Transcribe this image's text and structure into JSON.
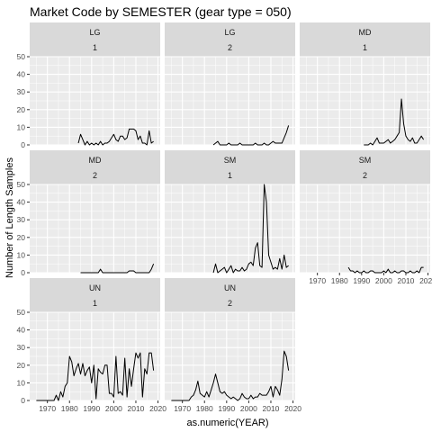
{
  "chart_data": {
    "type": "line",
    "title": "Market Code by SEMESTER (gear type = 050)",
    "xlabel": "as.numeric(YEAR)",
    "ylabel": "Number of Length Samples",
    "xlim": [
      1962,
      2021
    ],
    "ylim": [
      0,
      50
    ],
    "x_ticks": [
      1970,
      1980,
      1990,
      2000,
      2010,
      2020
    ],
    "y_ticks": [
      0,
      10,
      20,
      30,
      40,
      50
    ],
    "grid": true,
    "colors": {
      "panel": "#ebebeb",
      "strip": "#d9d9d9",
      "grid": "#ffffff",
      "line": "#000000",
      "text": "#1a1a1a",
      "tick_text": "#4d4d4d"
    },
    "panels": [
      {
        "code": "LG",
        "semester": "1",
        "x": [
          1984,
          1985,
          1986,
          1987,
          1988,
          1989,
          1990,
          1991,
          1992,
          1993,
          1994,
          1995,
          1996,
          1997,
          1998,
          1999,
          2000,
          2001,
          2002,
          2003,
          2004,
          2005,
          2006,
          2007,
          2008,
          2009,
          2010,
          2011,
          2012,
          2013,
          2014,
          2015,
          2016,
          2017,
          2018
        ],
        "y": [
          1,
          6,
          3,
          0,
          2,
          0,
          1,
          0,
          1,
          0,
          2,
          0,
          1,
          1,
          2,
          4,
          6,
          3,
          2,
          5,
          5,
          3,
          4,
          9,
          9,
          9,
          8,
          3,
          5,
          1,
          1,
          0,
          8,
          1,
          2
        ]
      },
      {
        "code": "LG",
        "semester": "2",
        "x": [
          1984,
          1985,
          1986,
          1987,
          1988,
          1989,
          1990,
          1991,
          1992,
          1993,
          1994,
          1995,
          1996,
          1997,
          1998,
          1999,
          2000,
          2001,
          2002,
          2003,
          2004,
          2005,
          2006,
          2007,
          2008,
          2009,
          2010,
          2011,
          2012,
          2013,
          2014,
          2015,
          2016,
          2017,
          2018
        ],
        "y": [
          0,
          1,
          2,
          0,
          0,
          0,
          0,
          1,
          0,
          0,
          0,
          0,
          1,
          0,
          0,
          0,
          0,
          0,
          0,
          1,
          0,
          0,
          0,
          1,
          0,
          0,
          1,
          2,
          1,
          1,
          1,
          1,
          4,
          7,
          11
        ]
      },
      {
        "code": "MD",
        "semester": "1",
        "x": [
          1991,
          1992,
          1993,
          1994,
          1995,
          1996,
          1997,
          1998,
          1999,
          2000,
          2001,
          2002,
          2003,
          2004,
          2005,
          2006,
          2007,
          2008,
          2009,
          2010,
          2011,
          2012,
          2013,
          2014,
          2015,
          2016,
          2017,
          2018
        ],
        "y": [
          0,
          0,
          0,
          1,
          0,
          2,
          4,
          1,
          1,
          1,
          2,
          3,
          1,
          2,
          3,
          5,
          7,
          26,
          12,
          5,
          3,
          2,
          4,
          1,
          1,
          3,
          5,
          3
        ]
      },
      {
        "code": "MD",
        "semester": "2",
        "x": [
          1985,
          1986,
          1987,
          1988,
          1989,
          1990,
          1991,
          1992,
          1993,
          1994,
          1995,
          1996,
          1997,
          1998,
          1999,
          2000,
          2001,
          2002,
          2003,
          2004,
          2005,
          2006,
          2007,
          2008,
          2009,
          2010,
          2011,
          2012,
          2013,
          2014,
          2015,
          2016,
          2017,
          2018
        ],
        "y": [
          0,
          0,
          0,
          0,
          0,
          0,
          0,
          0,
          0,
          2,
          0,
          0,
          0,
          0,
          0,
          0,
          0,
          0,
          0,
          0,
          0,
          0,
          1,
          1,
          1,
          0,
          0,
          0,
          0,
          0,
          0,
          0,
          2,
          5
        ]
      },
      {
        "code": "SM",
        "semester": "1",
        "x": [
          1984,
          1985,
          1986,
          1987,
          1988,
          1989,
          1990,
          1991,
          1992,
          1993,
          1994,
          1995,
          1996,
          1997,
          1998,
          1999,
          2000,
          2001,
          2002,
          2003,
          2004,
          2005,
          2006,
          2007,
          2008,
          2009,
          2010,
          2011,
          2012,
          2013,
          2014,
          2015,
          2016,
          2017,
          2018
        ],
        "y": [
          0,
          5,
          0,
          1,
          2,
          3,
          0,
          2,
          4,
          0,
          2,
          1,
          1,
          3,
          1,
          2,
          5,
          6,
          4,
          14,
          17,
          4,
          3,
          50,
          40,
          10,
          6,
          2,
          3,
          2,
          8,
          2,
          10,
          3,
          4
        ]
      },
      {
        "code": "SM",
        "semester": "2",
        "x": [
          1984,
          1985,
          1986,
          1987,
          1988,
          1989,
          1990,
          1991,
          1992,
          1993,
          1994,
          1995,
          1996,
          1997,
          1998,
          1999,
          2000,
          2001,
          2002,
          2003,
          2004,
          2005,
          2006,
          2007,
          2008,
          2009,
          2010,
          2011,
          2012,
          2013,
          2014,
          2015,
          2016,
          2017,
          2018
        ],
        "y": [
          3,
          1,
          1,
          0,
          1,
          0,
          0,
          1,
          0,
          0,
          1,
          1,
          0,
          0,
          0,
          0,
          1,
          0,
          2,
          0,
          0,
          1,
          0,
          0,
          1,
          1,
          0,
          0,
          1,
          0,
          0,
          1,
          0,
          3,
          3
        ]
      },
      {
        "code": "UN",
        "semester": "1",
        "x": [
          1965,
          1966,
          1967,
          1968,
          1969,
          1970,
          1971,
          1972,
          1973,
          1974,
          1975,
          1976,
          1977,
          1978,
          1979,
          1980,
          1981,
          1982,
          1983,
          1984,
          1985,
          1986,
          1987,
          1988,
          1989,
          1990,
          1991,
          1992,
          1993,
          1994,
          1995,
          1996,
          1997,
          1998,
          1999,
          2000,
          2001,
          2002,
          2003,
          2004,
          2005,
          2006,
          2007,
          2008,
          2009,
          2010,
          2011,
          2012,
          2013,
          2014,
          2015,
          2016,
          2017,
          2018
        ],
        "y": [
          0,
          0,
          0,
          0,
          0,
          0,
          0,
          0,
          0,
          3,
          0,
          5,
          2,
          8,
          10,
          25,
          22,
          14,
          18,
          21,
          15,
          21,
          14,
          17,
          19,
          10,
          20,
          1,
          18,
          16,
          15,
          20,
          20,
          4,
          4,
          2,
          25,
          4,
          5,
          3,
          24,
          2,
          18,
          8,
          18,
          27,
          24,
          27,
          2,
          18,
          15,
          27,
          27,
          17
        ]
      },
      {
        "code": "UN",
        "semester": "2",
        "x": [
          1965,
          1966,
          1967,
          1968,
          1969,
          1970,
          1971,
          1972,
          1973,
          1974,
          1975,
          1976,
          1977,
          1978,
          1979,
          1980,
          1981,
          1982,
          1983,
          1984,
          1985,
          1986,
          1987,
          1988,
          1989,
          1990,
          1991,
          1992,
          1993,
          1994,
          1995,
          1996,
          1997,
          1998,
          1999,
          2000,
          2001,
          2002,
          2003,
          2004,
          2005,
          2006,
          2007,
          2008,
          2009,
          2010,
          2011,
          2012,
          2013,
          2014,
          2015,
          2016,
          2017,
          2018
        ],
        "y": [
          0,
          0,
          0,
          0,
          0,
          0,
          0,
          0,
          0,
          2,
          3,
          6,
          11,
          4,
          3,
          2,
          5,
          2,
          6,
          10,
          15,
          10,
          5,
          4,
          5,
          3,
          2,
          1,
          2,
          1,
          0,
          1,
          4,
          2,
          1,
          1,
          3,
          1,
          2,
          2,
          4,
          3,
          3,
          3,
          5,
          8,
          2,
          8,
          6,
          3,
          12,
          28,
          25,
          17
        ]
      }
    ]
  }
}
